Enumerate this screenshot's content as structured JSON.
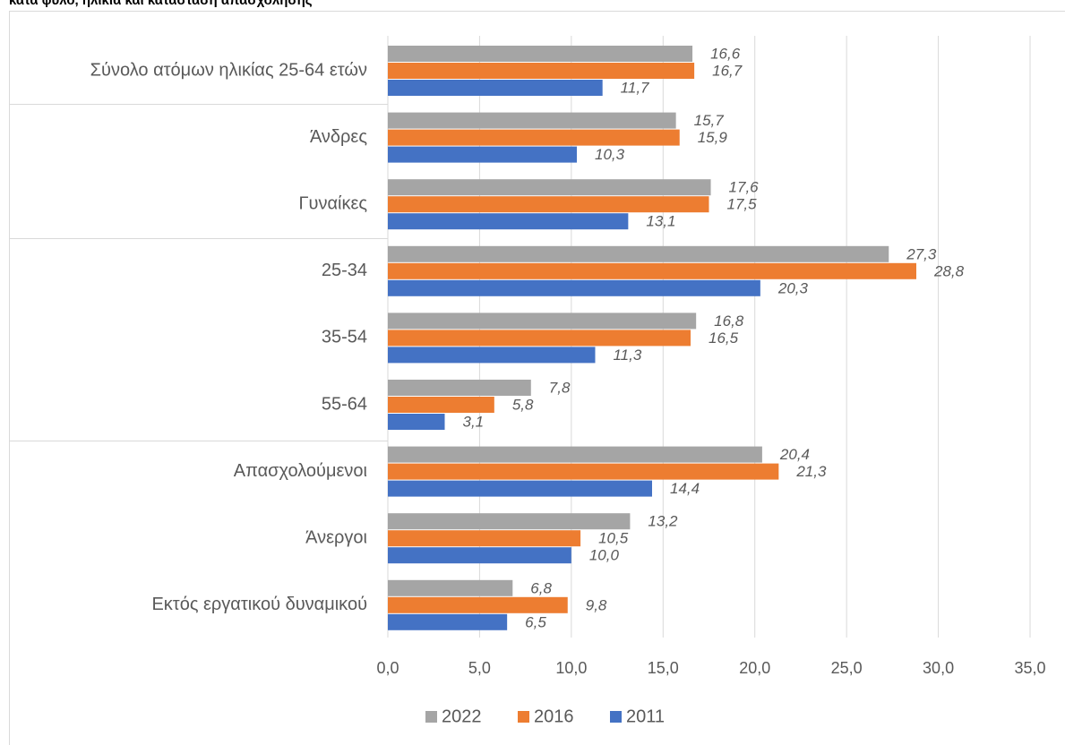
{
  "chart_data": {
    "type": "barh",
    "title": "κατά φύλο, ηλικία και κατάσταση απασχόλησης",
    "categories": [
      "Σύνολο ατόμων ηλικίας 25-64 ετών",
      "Άνδρες",
      "Γυναίκες",
      "25-34",
      "35-54",
      "55-64",
      "Απασχολούμενοι",
      "Άνεργοι",
      "Εκτός εργατικού δυναμικού"
    ],
    "series": [
      {
        "name": "2022",
        "color": "#a5a5a5",
        "values": [
          16.6,
          15.7,
          17.6,
          27.3,
          16.8,
          7.8,
          20.4,
          13.2,
          6.8
        ],
        "value_labels": [
          "16,6",
          "15,7",
          "17,6",
          "27,3",
          "16,8",
          "7,8",
          "20,4",
          "13,2",
          "6,8"
        ]
      },
      {
        "name": "2016",
        "color": "#ed7d31",
        "values": [
          16.7,
          15.9,
          17.5,
          28.8,
          16.5,
          5.8,
          21.3,
          10.5,
          9.8
        ],
        "value_labels": [
          "16,7",
          "15,9",
          "17,5",
          "28,8",
          "16,5",
          "5,8",
          "21,3",
          "10,5",
          "9,8"
        ]
      },
      {
        "name": "2011",
        "color": "#4472c4",
        "values": [
          11.7,
          10.3,
          13.1,
          20.3,
          11.3,
          3.1,
          14.4,
          10.0,
          6.5
        ],
        "value_labels": [
          "11,7",
          "10,3",
          "13,1",
          "20,3",
          "11,3",
          "3,1",
          "14,4",
          "10,0",
          "6,5"
        ]
      }
    ],
    "xlim": [
      0,
      35
    ],
    "xticks": [
      {
        "value": 0,
        "label": "0,0"
      },
      {
        "value": 5,
        "label": "5,0"
      },
      {
        "value": 10,
        "label": "10,0"
      },
      {
        "value": 15,
        "label": "15,0"
      },
      {
        "value": 20,
        "label": "20,0"
      },
      {
        "value": 25,
        "label": "25,0"
      },
      {
        "value": 30,
        "label": "30,0"
      },
      {
        "value": 35,
        "label": "35,0"
      }
    ],
    "grid": true,
    "legend": "bottom"
  }
}
